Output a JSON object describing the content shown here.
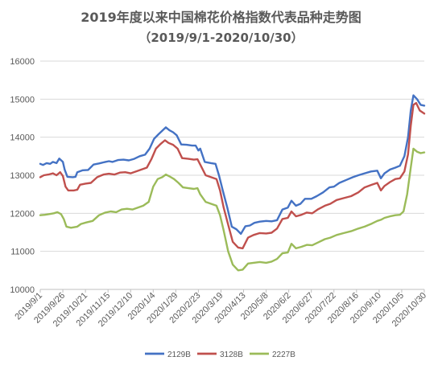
{
  "chart_data": {
    "type": "line",
    "title": "2019年度以来中国棉花价格指数代表品种走势图",
    "subtitle": "（2019/9/1-2020/10/30）",
    "xlabel": "",
    "ylabel": "",
    "x_start": "2019/9/1",
    "x_end": "2020/10/30",
    "ylim": [
      10000,
      16000
    ],
    "yticks": [
      10000,
      11000,
      12000,
      13000,
      14000,
      15000,
      16000
    ],
    "xticks": [
      "2019/9/1",
      "2019/9/26",
      "2019/10/21",
      "2019/11/15",
      "2019/12/10",
      "2020/1/4",
      "2020/1/29",
      "2020/2/23",
      "2020/3/19",
      "2020/4/13",
      "2020/5/8",
      "2020/6/2",
      "2020/6/27",
      "2020/7/22",
      "2020/8/16",
      "2020/9/10",
      "2020/10/5",
      "2020/10/30"
    ],
    "grid": true,
    "legend": "bottom",
    "series": [
      {
        "name": "2129B",
        "color": "#4472C4",
        "points": [
          [
            "2019/9/1",
            13300
          ],
          [
            "2019/9/4",
            13270
          ],
          [
            "2019/9/8",
            13320
          ],
          [
            "2019/9/12",
            13300
          ],
          [
            "2019/9/15",
            13350
          ],
          [
            "2019/9/19",
            13320
          ],
          [
            "2019/9/22",
            13440
          ],
          [
            "2019/9/26",
            13350
          ],
          [
            "2019/9/28",
            13150
          ],
          [
            "2019/10/1",
            12960
          ],
          [
            "2019/10/7",
            12950
          ],
          [
            "2019/10/10",
            12960
          ],
          [
            "2019/10/12",
            13080
          ],
          [
            "2019/10/18",
            13130
          ],
          [
            "2019/10/24",
            13140
          ],
          [
            "2019/10/30",
            13280
          ],
          [
            "2019/11/5",
            13310
          ],
          [
            "2019/11/12",
            13350
          ],
          [
            "2019/11/16",
            13370
          ],
          [
            "2019/11/20",
            13350
          ],
          [
            "2019/11/26",
            13400
          ],
          [
            "2019/12/2",
            13410
          ],
          [
            "2019/12/8",
            13390
          ],
          [
            "2019/12/14",
            13430
          ],
          [
            "2019/12/20",
            13500
          ],
          [
            "2019/12/26",
            13540
          ],
          [
            "2019/12/31",
            13700
          ],
          [
            "2020/1/5",
            13960
          ],
          [
            "2020/1/10",
            14080
          ],
          [
            "2020/1/14",
            14170
          ],
          [
            "2020/1/18",
            14260
          ],
          [
            "2020/1/22",
            14180
          ],
          [
            "2020/1/26",
            14130
          ],
          [
            "2020/1/30",
            14050
          ],
          [
            "2020/2/4",
            13810
          ],
          [
            "2020/2/10",
            13800
          ],
          [
            "2020/2/16",
            13780
          ],
          [
            "2020/2/20",
            13780
          ],
          [
            "2020/2/23",
            13650
          ],
          [
            "2020/2/25",
            13700
          ],
          [
            "2020/3/1",
            13350
          ],
          [
            "2020/3/8",
            13320
          ],
          [
            "2020/3/13",
            13300
          ],
          [
            "2020/3/17",
            12980
          ],
          [
            "2020/3/21",
            12600
          ],
          [
            "2020/3/26",
            12150
          ],
          [
            "2020/3/31",
            11650
          ],
          [
            "2020/4/5",
            11580
          ],
          [
            "2020/4/10",
            11460
          ],
          [
            "2020/4/15",
            11660
          ],
          [
            "2020/4/20",
            11680
          ],
          [
            "2020/4/25",
            11750
          ],
          [
            "2020/5/1",
            11780
          ],
          [
            "2020/5/8",
            11800
          ],
          [
            "2020/5/14",
            11790
          ],
          [
            "2020/5/20",
            11820
          ],
          [
            "2020/5/26",
            12100
          ],
          [
            "2020/6/1",
            12150
          ],
          [
            "2020/6/5",
            12330
          ],
          [
            "2020/6/10",
            12200
          ],
          [
            "2020/6/15",
            12250
          ],
          [
            "2020/6/20",
            12380
          ],
          [
            "2020/6/27",
            12380
          ],
          [
            "2020/7/3",
            12450
          ],
          [
            "2020/7/10",
            12550
          ],
          [
            "2020/7/17",
            12680
          ],
          [
            "2020/7/22",
            12700
          ],
          [
            "2020/7/28",
            12800
          ],
          [
            "2020/8/5",
            12880
          ],
          [
            "2020/8/12",
            12950
          ],
          [
            "2020/8/18",
            13000
          ],
          [
            "2020/8/25",
            13050
          ],
          [
            "2020/9/1",
            13100
          ],
          [
            "2020/9/8",
            13120
          ],
          [
            "2020/9/12",
            12920
          ],
          [
            "2020/9/16",
            13050
          ],
          [
            "2020/9/22",
            13150
          ],
          [
            "2020/9/28",
            13200
          ],
          [
            "2020/10/3",
            13250
          ],
          [
            "2020/10/8",
            13500
          ],
          [
            "2020/10/12",
            14000
          ],
          [
            "2020/10/15",
            14700
          ],
          [
            "2020/10/18",
            15100
          ],
          [
            "2020/10/22",
            15000
          ],
          [
            "2020/10/26",
            14850
          ],
          [
            "2020/10/30",
            14830
          ]
        ]
      },
      {
        "name": "3128B",
        "color": "#C0504D",
        "points": [
          [
            "2019/9/1",
            12950
          ],
          [
            "2019/9/5",
            13000
          ],
          [
            "2019/9/10",
            13020
          ],
          [
            "2019/9/15",
            13050
          ],
          [
            "2019/9/19",
            13000
          ],
          [
            "2019/9/23",
            13080
          ],
          [
            "2019/9/26",
            12980
          ],
          [
            "2019/9/29",
            12700
          ],
          [
            "2019/10/2",
            12600
          ],
          [
            "2019/10/8",
            12600
          ],
          [
            "2019/10/12",
            12620
          ],
          [
            "2019/10/15",
            12750
          ],
          [
            "2019/10/21",
            12780
          ],
          [
            "2019/10/27",
            12800
          ],
          [
            "2019/11/3",
            12950
          ],
          [
            "2019/11/10",
            13020
          ],
          [
            "2019/11/16",
            13040
          ],
          [
            "2019/11/22",
            13020
          ],
          [
            "2019/11/28",
            13070
          ],
          [
            "2019/12/4",
            13080
          ],
          [
            "2019/12/10",
            13050
          ],
          [
            "2019/12/16",
            13100
          ],
          [
            "2019/12/22",
            13150
          ],
          [
            "2019/12/28",
            13200
          ],
          [
            "2020/1/2",
            13420
          ],
          [
            "2020/1/7",
            13700
          ],
          [
            "2020/1/12",
            13820
          ],
          [
            "2020/1/17",
            13920
          ],
          [
            "2020/1/21",
            13850
          ],
          [
            "2020/1/26",
            13800
          ],
          [
            "2020/1/31",
            13700
          ],
          [
            "2020/2/5",
            13450
          ],
          [
            "2020/2/12",
            13430
          ],
          [
            "2020/2/18",
            13410
          ],
          [
            "2020/2/22",
            13420
          ],
          [
            "2020/2/25",
            13280
          ],
          [
            "2020/3/2",
            13000
          ],
          [
            "2020/3/8",
            12950
          ],
          [
            "2020/3/14",
            12900
          ],
          [
            "2020/3/18",
            12600
          ],
          [
            "2020/3/22",
            12150
          ],
          [
            "2020/3/27",
            11700
          ],
          [
            "2020/4/1",
            11250
          ],
          [
            "2020/4/7",
            11100
          ],
          [
            "2020/4/12",
            11080
          ],
          [
            "2020/4/18",
            11360
          ],
          [
            "2020/4/24",
            11430
          ],
          [
            "2020/5/1",
            11480
          ],
          [
            "2020/5/8",
            11470
          ],
          [
            "2020/5/14",
            11490
          ],
          [
            "2020/5/20",
            11600
          ],
          [
            "2020/5/26",
            11850
          ],
          [
            "2020/6/1",
            11880
          ],
          [
            "2020/6/5",
            12050
          ],
          [
            "2020/6/10",
            11920
          ],
          [
            "2020/6/16",
            11960
          ],
          [
            "2020/6/22",
            12020
          ],
          [
            "2020/6/28",
            12000
          ],
          [
            "2020/7/4",
            12100
          ],
          [
            "2020/7/12",
            12200
          ],
          [
            "2020/7/18",
            12250
          ],
          [
            "2020/7/25",
            12350
          ],
          [
            "2020/8/2",
            12400
          ],
          [
            "2020/8/10",
            12450
          ],
          [
            "2020/8/18",
            12550
          ],
          [
            "2020/8/25",
            12680
          ],
          [
            "2020/9/2",
            12750
          ],
          [
            "2020/9/8",
            12800
          ],
          [
            "2020/9/12",
            12600
          ],
          [
            "2020/9/16",
            12720
          ],
          [
            "2020/9/22",
            12820
          ],
          [
            "2020/9/28",
            12900
          ],
          [
            "2020/10/3",
            12920
          ],
          [
            "2020/10/8",
            13100
          ],
          [
            "2020/10/12",
            13550
          ],
          [
            "2020/10/15",
            14300
          ],
          [
            "2020/10/18",
            14850
          ],
          [
            "2020/10/21",
            14900
          ],
          [
            "2020/10/25",
            14700
          ],
          [
            "2020/10/30",
            14620
          ]
        ]
      },
      {
        "name": "2227B",
        "color": "#9BBB59",
        "points": [
          [
            "2019/9/1",
            11950
          ],
          [
            "2019/9/6",
            11960
          ],
          [
            "2019/9/11",
            11980
          ],
          [
            "2019/9/16",
            12000
          ],
          [
            "2019/9/20",
            12030
          ],
          [
            "2019/9/24",
            11980
          ],
          [
            "2019/9/27",
            11850
          ],
          [
            "2019/9/30",
            11650
          ],
          [
            "2019/10/5",
            11620
          ],
          [
            "2019/10/12",
            11650
          ],
          [
            "2019/10/16",
            11720
          ],
          [
            "2019/10/22",
            11760
          ],
          [
            "2019/10/29",
            11800
          ],
          [
            "2019/11/5",
            11950
          ],
          [
            "2019/11/12",
            12020
          ],
          [
            "2019/11/18",
            12050
          ],
          [
            "2019/11/24",
            12030
          ],
          [
            "2019/11/30",
            12100
          ],
          [
            "2019/12/6",
            12120
          ],
          [
            "2019/12/12",
            12100
          ],
          [
            "2019/12/18",
            12150
          ],
          [
            "2019/12/24",
            12200
          ],
          [
            "2019/12/30",
            12300
          ],
          [
            "2020/1/4",
            12700
          ],
          [
            "2020/1/9",
            12900
          ],
          [
            "2020/1/14",
            12950
          ],
          [
            "2020/1/18",
            13020
          ],
          [
            "2020/1/22",
            12970
          ],
          [
            "2020/1/27",
            12900
          ],
          [
            "2020/2/1",
            12800
          ],
          [
            "2020/2/6",
            12680
          ],
          [
            "2020/2/12",
            12660
          ],
          [
            "2020/2/18",
            12640
          ],
          [
            "2020/2/22",
            12660
          ],
          [
            "2020/2/25",
            12500
          ],
          [
            "2020/3/2",
            12300
          ],
          [
            "2020/3/8",
            12250
          ],
          [
            "2020/3/14",
            12200
          ],
          [
            "2020/3/18",
            11950
          ],
          [
            "2020/3/22",
            11550
          ],
          [
            "2020/3/27",
            11000
          ],
          [
            "2020/4/1",
            10650
          ],
          [
            "2020/4/7",
            10500
          ],
          [
            "2020/4/12",
            10520
          ],
          [
            "2020/4/18",
            10680
          ],
          [
            "2020/4/24",
            10700
          ],
          [
            "2020/5/1",
            10720
          ],
          [
            "2020/5/8",
            10700
          ],
          [
            "2020/5/14",
            10730
          ],
          [
            "2020/5/20",
            10800
          ],
          [
            "2020/5/26",
            10950
          ],
          [
            "2020/6/1",
            10970
          ],
          [
            "2020/6/5",
            11200
          ],
          [
            "2020/6/10",
            11080
          ],
          [
            "2020/6/16",
            11120
          ],
          [
            "2020/6/22",
            11170
          ],
          [
            "2020/6/28",
            11160
          ],
          [
            "2020/7/4",
            11230
          ],
          [
            "2020/7/12",
            11320
          ],
          [
            "2020/7/18",
            11360
          ],
          [
            "2020/7/25",
            11430
          ],
          [
            "2020/8/2",
            11480
          ],
          [
            "2020/8/10",
            11530
          ],
          [
            "2020/8/18",
            11600
          ],
          [
            "2020/8/25",
            11650
          ],
          [
            "2020/9/2",
            11730
          ],
          [
            "2020/9/8",
            11800
          ],
          [
            "2020/9/12",
            11830
          ],
          [
            "2020/9/16",
            11880
          ],
          [
            "2020/9/22",
            11920
          ],
          [
            "2020/9/28",
            11950
          ],
          [
            "2020/10/3",
            11960
          ],
          [
            "2020/10/7",
            12050
          ],
          [
            "2020/10/11",
            12500
          ],
          [
            "2020/10/15",
            13200
          ],
          [
            "2020/10/18",
            13700
          ],
          [
            "2020/10/22",
            13620
          ],
          [
            "2020/10/26",
            13580
          ],
          [
            "2020/10/30",
            13600
          ]
        ]
      }
    ]
  }
}
